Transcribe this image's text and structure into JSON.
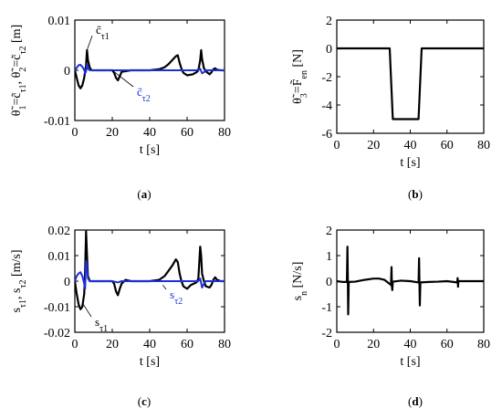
{
  "panels": [
    {
      "id": "a",
      "label": "(a)",
      "label_letter": "a"
    },
    {
      "id": "b",
      "label": "(b)",
      "label_letter": "b"
    },
    {
      "id": "c",
      "label": "(c)",
      "label_letter": "c"
    },
    {
      "id": "d",
      "label": "(d)",
      "label_letter": "d"
    }
  ],
  "colors": {
    "black_series": "#000000",
    "blue_series": "#1f2fd6"
  },
  "chart_data": [
    {
      "id": "a",
      "type": "line",
      "xlabel": "t [s]",
      "ylabel": "θ̃1=c̃τ1, θ̃2=c̃τ2 [m]",
      "xlim": [
        0,
        80
      ],
      "ylim": [
        -0.01,
        0.01
      ],
      "xticks": [
        0,
        20,
        40,
        60,
        80
      ],
      "yticks": [
        -0.01,
        0,
        0.01
      ],
      "ytick_labels": [
        "-0.01",
        "0",
        "0.01"
      ],
      "annotations": [
        {
          "text": "c̃τ1",
          "series": "black",
          "target": [
            6.5,
            0.004
          ]
        },
        {
          "text": "c̃τ2",
          "series": "blue",
          "target": [
            20,
            0.0
          ]
        }
      ],
      "series": [
        {
          "key": "black",
          "color": "#000000",
          "x": [
            0,
            1,
            2,
            3,
            4,
            5,
            6,
            6.5,
            7,
            8,
            9,
            10,
            15,
            20,
            21,
            22,
            23,
            24,
            25,
            30,
            40,
            45,
            48,
            50,
            52,
            54,
            55,
            56,
            57,
            58,
            60,
            63,
            65,
            66,
            67,
            67.5,
            68,
            69,
            70,
            72,
            73,
            74,
            75,
            76,
            78,
            80
          ],
          "y": [
            0,
            -0.0015,
            -0.003,
            -0.0036,
            -0.003,
            -0.0015,
            0.001,
            0.004,
            0.002,
            0.0005,
            0,
            0,
            0,
            0,
            -0.0005,
            -0.0015,
            -0.002,
            -0.0012,
            -0.0003,
            0,
            0,
            0.0002,
            0.0006,
            0.0012,
            0.002,
            0.0028,
            0.003,
            0.0015,
            0.0003,
            -0.0005,
            -0.001,
            -0.0008,
            -0.0004,
            0,
            0.002,
            0.004,
            0.0022,
            0.0004,
            -0.0002,
            -0.0008,
            -0.0004,
            0.0002,
            0.0004,
            0.0001,
            0,
            0
          ]
        },
        {
          "key": "blue",
          "color": "#1f2fd6",
          "x": [
            0,
            1,
            2,
            3,
            4,
            5,
            5.5,
            6,
            6.5,
            7,
            8,
            10,
            15,
            20,
            25,
            30,
            40,
            50,
            55,
            60,
            65,
            67,
            68,
            69,
            70,
            72,
            80
          ],
          "y": [
            0,
            0.0005,
            0.001,
            0.0011,
            0.0007,
            0.0001,
            -0.0006,
            -0.0002,
            0.0012,
            0.0003,
            0,
            0,
            0,
            0,
            0,
            0,
            0,
            0,
            0,
            0,
            0,
            0.0003,
            -0.0006,
            -0.0004,
            0,
            0,
            0
          ]
        }
      ]
    },
    {
      "id": "b",
      "type": "line",
      "xlabel": "t [s]",
      "ylabel": "θ̃3=F̃en [N]",
      "xlim": [
        0,
        80
      ],
      "ylim": [
        -6,
        2
      ],
      "xticks": [
        0,
        20,
        40,
        60,
        80
      ],
      "yticks": [
        -6,
        -4,
        -2,
        0,
        2
      ],
      "ytick_labels": [
        "-6",
        "-4",
        "-2",
        "0",
        "2"
      ],
      "series": [
        {
          "key": "black",
          "color": "#000000",
          "x": [
            0,
            28.8,
            30.5,
            44.5,
            46.2,
            80
          ],
          "y": [
            0,
            0,
            -5,
            -5,
            0,
            0
          ]
        }
      ]
    },
    {
      "id": "c",
      "type": "line",
      "xlabel": "t [s]",
      "ylabel": "sτ1, sτ2 [m/s]",
      "xlim": [
        0,
        80
      ],
      "ylim": [
        -0.02,
        0.02
      ],
      "xticks": [
        0,
        20,
        40,
        60,
        80
      ],
      "yticks": [
        -0.02,
        -0.01,
        0,
        0.01,
        0.02
      ],
      "ytick_labels": [
        "-0.02",
        "-0.01",
        "0",
        "0.01",
        "0.02"
      ],
      "annotations": [
        {
          "text": "sτ1",
          "series": "black",
          "target": [
            4,
            -0.0085
          ]
        },
        {
          "text": "sτ2",
          "series": "blue",
          "target": [
            47,
            -0.0015
          ]
        }
      ],
      "series": [
        {
          "key": "black",
          "color": "#000000",
          "x": [
            0,
            1,
            2,
            3,
            4,
            5,
            5.5,
            6,
            6.5,
            7,
            8,
            9,
            10,
            15,
            20,
            21,
            22,
            23,
            24,
            25,
            27,
            30,
            40,
            45,
            48,
            50,
            52,
            54,
            55,
            56,
            57,
            58,
            60,
            62,
            65,
            66,
            67,
            67.5,
            68,
            69,
            70,
            72,
            73,
            74,
            75,
            76,
            78,
            80
          ],
          "y": [
            0,
            -0.005,
            -0.009,
            -0.011,
            -0.01,
            -0.005,
            0.004,
            0.0195,
            0.01,
            0.002,
            0,
            0,
            0,
            0,
            0,
            -0.001,
            -0.004,
            -0.0055,
            -0.003,
            -0.001,
            0.0005,
            0,
            0,
            0.0005,
            0.002,
            0.004,
            0.006,
            0.0085,
            0.0075,
            0.003,
            0,
            -0.002,
            -0.003,
            -0.0015,
            -0.0005,
            0.001,
            0.0135,
            0.01,
            0.003,
            0,
            -0.002,
            -0.0025,
            -0.0015,
            0.0005,
            0.0015,
            0.0005,
            0,
            0
          ]
        },
        {
          "key": "blue",
          "color": "#1f2fd6",
          "x": [
            0,
            1,
            2,
            3,
            4,
            5,
            5.5,
            6,
            6.5,
            7,
            8,
            10,
            20,
            23,
            25,
            30,
            40,
            50,
            55,
            60,
            66,
            67,
            68,
            69,
            70,
            80
          ],
          "y": [
            0,
            0.002,
            0.003,
            0.0035,
            0.002,
            -0.001,
            -0.003,
            0.008,
            0.006,
            0.001,
            0,
            0,
            0,
            -0.0005,
            0,
            0,
            0,
            0,
            0,
            0,
            0,
            0.001,
            -0.0025,
            -0.001,
            0,
            0
          ]
        }
      ]
    },
    {
      "id": "d",
      "type": "line",
      "xlabel": "t [s]",
      "ylabel": "sn [N/s]",
      "xlim": [
        0,
        80
      ],
      "ylim": [
        -2,
        2
      ],
      "xticks": [
        0,
        20,
        40,
        60,
        80
      ],
      "yticks": [
        -2,
        -1,
        0,
        1,
        2
      ],
      "ytick_labels": [
        "-2",
        "-1",
        "0",
        "1",
        "2"
      ],
      "series": [
        {
          "key": "black",
          "color": "#000000",
          "x": [
            0,
            3,
            5.5,
            5.8,
            6.0,
            6.2,
            6.5,
            10,
            15,
            20,
            23,
            26,
            29.5,
            29.8,
            30,
            30.2,
            30.5,
            35,
            40,
            44.5,
            44.8,
            45.0,
            45.2,
            45.5,
            50,
            55,
            60,
            65.5,
            65.8,
            66,
            66.2,
            70,
            75,
            80
          ],
          "y": [
            0,
            -0.03,
            -0.03,
            1.35,
            0.2,
            -1.3,
            -0.03,
            -0.02,
            0.05,
            0.1,
            0.1,
            0.05,
            -0.15,
            0.55,
            -0.2,
            -0.35,
            -0.02,
            0.02,
            0.0,
            -0.05,
            0.9,
            -0.1,
            -0.95,
            -0.05,
            -0.03,
            -0.02,
            0.0,
            -0.05,
            0.12,
            -0.22,
            0.0,
            0.0,
            0.0,
            0.0
          ]
        }
      ]
    }
  ]
}
